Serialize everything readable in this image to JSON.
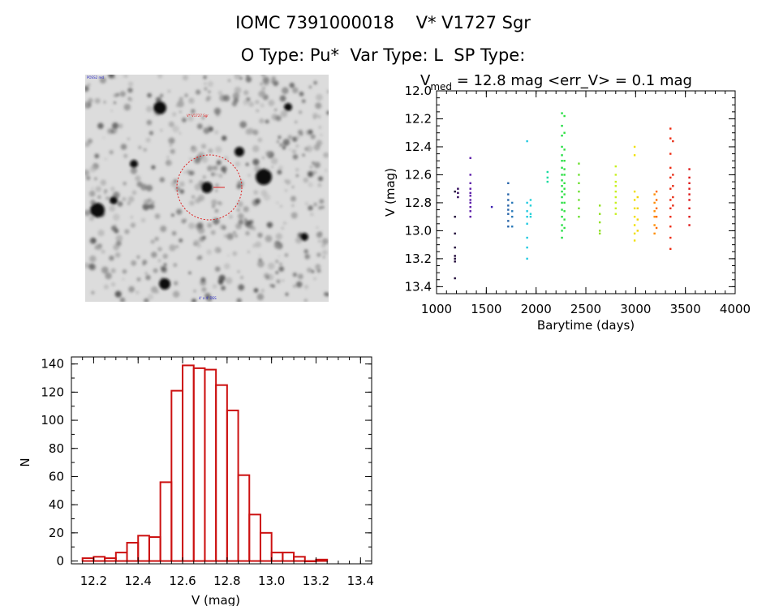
{
  "header": {
    "title_line1": "IOMC 7391000018    V* V1727 Sgr",
    "title_line2": "O Type: Pu*  Var Type: L  SP Type:"
  },
  "sky_image": {
    "top_left_label": "POSS2 red",
    "target_label": "V* V1727 Sgr",
    "bottom_label": "4' x 4' DSS",
    "circle_color": "#dd2222"
  },
  "chart_data": [
    {
      "type": "scatter",
      "name": "light-curve",
      "title_prefix": "V",
      "title_subscript": "med",
      "title_rest": " = 12.8 mag <err_V> = 0.1 mag",
      "xlabel": "Barytime (days)",
      "ylabel": "V (mag)",
      "xlim": [
        1000,
        4000
      ],
      "ylim": [
        13.45,
        12.0
      ],
      "xticks": [
        1000,
        1500,
        2000,
        2500,
        3000,
        3500,
        4000
      ],
      "yticks": [
        12.0,
        12.2,
        12.4,
        12.6,
        12.8,
        13.0,
        13.2,
        13.4
      ],
      "clusters": [
        {
          "x": 1185,
          "y": [
            12.72,
            12.9,
            13.02,
            13.12,
            13.18,
            13.2,
            13.22,
            13.34
          ],
          "color": "#1a0033"
        },
        {
          "x": 1215,
          "y": [
            12.7,
            12.73,
            12.76
          ],
          "color": "#2a0055"
        },
        {
          "x": 1340,
          "y": [
            12.48,
            12.6,
            12.66,
            12.7,
            12.73,
            12.75,
            12.78,
            12.8,
            12.83,
            12.86,
            12.9
          ],
          "color": "#5a1aa8"
        },
        {
          "x": 1555,
          "y": [
            12.83
          ],
          "color": "#3a20b0"
        },
        {
          "x": 1720,
          "y": [
            12.66,
            12.74,
            12.78,
            12.82,
            12.85,
            12.88,
            12.93,
            12.97
          ],
          "color": "#2462a8"
        },
        {
          "x": 1760,
          "y": [
            12.8,
            12.86,
            12.9,
            12.97
          ],
          "color": "#2878b8"
        },
        {
          "x": 1910,
          "y": [
            12.36,
            12.8,
            12.86,
            12.9,
            12.95,
            13.05,
            13.12,
            13.2
          ],
          "color": "#1ec8e0"
        },
        {
          "x": 1945,
          "y": [
            12.78,
            12.82,
            12.88,
            12.9
          ],
          "color": "#20d0d8"
        },
        {
          "x": 2115,
          "y": [
            12.58,
            12.62,
            12.65
          ],
          "color": "#18dca0"
        },
        {
          "x": 2260,
          "y": [
            12.16,
            12.25,
            12.32,
            12.4,
            12.46,
            12.5,
            12.55,
            12.6,
            12.64,
            12.68,
            12.72,
            12.76,
            12.8,
            12.85,
            12.9,
            12.96,
            13.0,
            13.05
          ],
          "color": "#22dd44"
        },
        {
          "x": 2285,
          "y": [
            12.18,
            12.3,
            12.42,
            12.5,
            12.56,
            12.6,
            12.66,
            12.7,
            12.74,
            12.8,
            12.86,
            12.92,
            12.98
          ],
          "color": "#30e040"
        },
        {
          "x": 2430,
          "y": [
            12.52,
            12.6,
            12.66,
            12.72,
            12.78,
            12.84,
            12.9
          ],
          "color": "#6ce030"
        },
        {
          "x": 2640,
          "y": [
            12.82,
            12.88,
            12.94,
            13.0,
            13.02
          ],
          "color": "#8fe020"
        },
        {
          "x": 2800,
          "y": [
            12.54,
            12.6,
            12.65,
            12.68,
            12.72,
            12.76,
            12.8,
            12.84,
            12.88
          ],
          "color": "#c8f020"
        },
        {
          "x": 2990,
          "y": [
            12.4,
            12.46,
            12.72,
            12.78,
            12.84,
            12.9,
            12.96,
            13.02,
            13.07
          ],
          "color": "#f0e000"
        },
        {
          "x": 3020,
          "y": [
            12.76,
            12.84,
            12.92,
            13.0
          ],
          "color": "#f2d400"
        },
        {
          "x": 3190,
          "y": [
            12.74,
            12.8,
            12.86,
            12.9,
            12.96,
            13.02
          ],
          "color": "#ff8c00"
        },
        {
          "x": 3210,
          "y": [
            12.72,
            12.78,
            12.84,
            12.9,
            12.98
          ],
          "color": "#ff6a00"
        },
        {
          "x": 3350,
          "y": [
            12.27,
            12.34,
            12.45,
            12.55,
            12.62,
            12.7,
            12.78,
            12.84,
            12.9,
            12.97,
            13.05,
            13.13
          ],
          "color": "#ee2a10"
        },
        {
          "x": 3375,
          "y": [
            12.36,
            12.6,
            12.68,
            12.76,
            12.82
          ],
          "color": "#e62a12"
        },
        {
          "x": 3540,
          "y": [
            12.56,
            12.62,
            12.66,
            12.7,
            12.74,
            12.78,
            12.84,
            12.9,
            12.96
          ],
          "color": "#dd1111"
        }
      ]
    },
    {
      "type": "bar",
      "name": "histogram",
      "xlabel": "V (mag)",
      "ylabel": "N",
      "xlim": [
        12.1,
        13.45
      ],
      "ylim": [
        -2,
        145
      ],
      "xticks": [
        "12.2",
        "12.4",
        "12.6",
        "12.8",
        "13.0",
        "13.2",
        "13.4"
      ],
      "yticks": [
        "0",
        "20",
        "40",
        "60",
        "80",
        "100",
        "120",
        "140"
      ],
      "bin_start": 12.15,
      "bin_width": 0.05,
      "values": [
        2,
        3,
        2,
        6,
        13,
        18,
        17,
        56,
        121,
        139,
        137,
        136,
        125,
        107,
        61,
        33,
        20,
        6,
        6,
        3,
        0,
        1
      ],
      "bar_color": "#cc1111"
    }
  ]
}
